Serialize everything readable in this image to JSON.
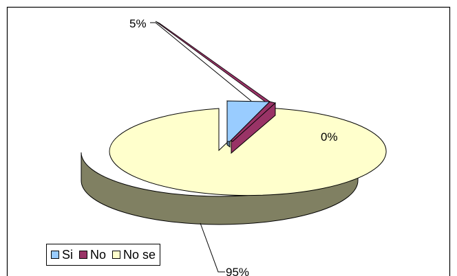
{
  "chart_data": {
    "type": "pie",
    "style": "3d-exploded",
    "categories": [
      "Si",
      "No",
      "No se"
    ],
    "values": [
      5,
      0.3,
      95
    ],
    "data_labels": [
      "5%",
      "0%",
      "95%"
    ],
    "colors": {
      "Si": "#99ccff",
      "No": "#993366",
      "No se": "#ffffcc",
      "No se side": "#808062"
    },
    "legend": {
      "placement": "bottom-left",
      "entries": [
        "Si",
        "No",
        "No se"
      ]
    },
    "title": "",
    "grid": false
  }
}
